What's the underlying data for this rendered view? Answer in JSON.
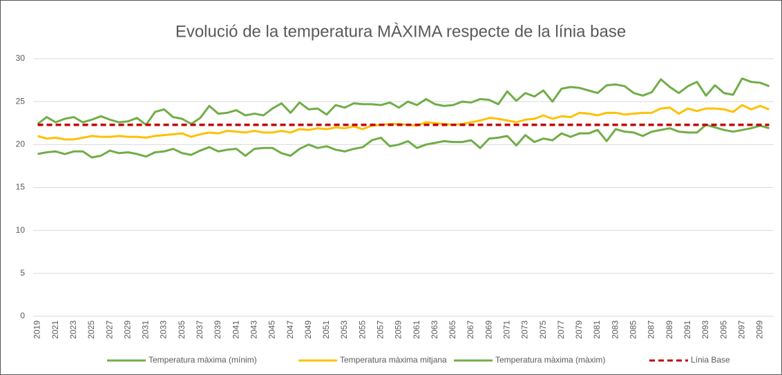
{
  "chart_data": {
    "type": "line",
    "title": "Evolució de la temperatura MÀXIMA respecte de la línia base",
    "categories": [
      "2019",
      null,
      "2021",
      null,
      "2023",
      null,
      "2025",
      null,
      "2027",
      null,
      "2029",
      null,
      "2031",
      null,
      "2033",
      null,
      "2035",
      null,
      "2037",
      null,
      "2039",
      null,
      "2041",
      null,
      "2043",
      null,
      "2045",
      null,
      "2047",
      null,
      "2049",
      null,
      "2051",
      null,
      "2053",
      null,
      "2055",
      null,
      "2057",
      null,
      "2059",
      null,
      "2061",
      null,
      "2063",
      null,
      "2065",
      null,
      "2067",
      null,
      "2069",
      null,
      "2071",
      null,
      "2073",
      null,
      "2075",
      null,
      "2077",
      null,
      "2079",
      null,
      "2081",
      null,
      "2083",
      null,
      "2085",
      null,
      "2087",
      null,
      "2089",
      null,
      "2091",
      null,
      "2093",
      null,
      "2095",
      null,
      "2097",
      null,
      "2099",
      null
    ],
    "ylim": [
      0,
      30
    ],
    "yticks": [
      0,
      5,
      10,
      15,
      20,
      25,
      30
    ],
    "grid": true,
    "legend": "bottom",
    "series": [
      {
        "name": "Temperatura màxima (mínim)",
        "color": "#70ad47",
        "values": [
          18.9,
          19.1,
          19.2,
          18.9,
          19.2,
          19.2,
          18.5,
          18.7,
          19.3,
          19.0,
          19.1,
          18.9,
          18.6,
          19.1,
          19.2,
          19.5,
          19.0,
          18.8,
          19.3,
          19.7,
          19.2,
          19.4,
          19.5,
          18.7,
          19.5,
          19.6,
          19.6,
          19.0,
          18.7,
          19.5,
          20.0,
          19.6,
          19.8,
          19.4,
          19.2,
          19.5,
          19.7,
          20.5,
          20.8,
          19.8,
          20.0,
          20.4,
          19.6,
          20.0,
          20.2,
          20.4,
          20.3,
          20.3,
          20.5,
          19.6,
          20.7,
          20.8,
          21.0,
          19.9,
          21.1,
          20.3,
          20.7,
          20.5,
          21.3,
          20.9,
          21.3,
          21.3,
          21.7,
          20.4,
          21.8,
          21.5,
          21.4,
          21.0,
          21.5,
          21.7,
          21.9,
          21.5,
          21.4,
          21.4,
          22.3,
          22.0,
          21.7,
          21.5,
          21.7,
          21.9,
          22.2,
          21.9
        ]
      },
      {
        "name": "Temperatura màxima mitjana",
        "color": "#ffc000",
        "values": [
          21.0,
          20.7,
          20.8,
          20.6,
          20.6,
          20.8,
          21.0,
          20.9,
          20.9,
          21.0,
          20.9,
          20.9,
          20.8,
          21.0,
          21.1,
          21.2,
          21.3,
          20.9,
          21.2,
          21.4,
          21.3,
          21.6,
          21.5,
          21.4,
          21.6,
          21.4,
          21.4,
          21.6,
          21.4,
          21.8,
          21.7,
          21.9,
          21.8,
          22.0,
          21.9,
          22.1,
          21.8,
          22.2,
          22.3,
          22.4,
          22.4,
          22.3,
          22.2,
          22.6,
          22.5,
          22.4,
          22.3,
          22.4,
          22.6,
          22.8,
          23.1,
          23.0,
          22.8,
          22.6,
          22.9,
          23.0,
          23.4,
          23.0,
          23.3,
          23.2,
          23.7,
          23.6,
          23.4,
          23.7,
          23.7,
          23.5,
          23.6,
          23.7,
          23.7,
          24.2,
          24.3,
          23.6,
          24.2,
          23.9,
          24.2,
          24.2,
          24.1,
          23.8,
          24.6,
          24.1,
          24.5,
          24.1
        ]
      },
      {
        "name": "Temperatura màxima (màxim)",
        "color": "#70ad47",
        "values": [
          22.4,
          23.2,
          22.6,
          23.0,
          23.2,
          22.6,
          22.9,
          23.3,
          22.9,
          22.6,
          22.7,
          23.1,
          22.3,
          23.8,
          24.1,
          23.2,
          23.0,
          22.4,
          23.1,
          24.5,
          23.6,
          23.7,
          24.0,
          23.4,
          23.6,
          23.4,
          24.2,
          24.8,
          23.7,
          24.9,
          24.1,
          24.2,
          23.5,
          24.6,
          24.3,
          24.8,
          24.7,
          24.7,
          24.6,
          24.9,
          24.3,
          25.0,
          24.6,
          25.3,
          24.7,
          24.5,
          24.6,
          25.0,
          24.9,
          25.3,
          25.2,
          24.7,
          26.2,
          25.1,
          26.0,
          25.6,
          26.3,
          25.0,
          26.5,
          26.7,
          26.6,
          26.3,
          26.0,
          26.9,
          27.0,
          26.8,
          26.0,
          25.7,
          26.1,
          27.6,
          26.7,
          26.0,
          26.8,
          27.3,
          25.7,
          26.9,
          26.0,
          25.8,
          27.7,
          27.3,
          27.2,
          26.8
        ]
      },
      {
        "name": "Línia Base",
        "color": "#c00000",
        "dashed": true,
        "values": [
          22.3,
          22.3,
          22.3,
          22.3,
          22.3,
          22.3,
          22.3,
          22.3,
          22.3,
          22.3,
          22.3,
          22.3,
          22.3,
          22.3,
          22.3,
          22.3,
          22.3,
          22.3,
          22.3,
          22.3,
          22.3,
          22.3,
          22.3,
          22.3,
          22.3,
          22.3,
          22.3,
          22.3,
          22.3,
          22.3,
          22.3,
          22.3,
          22.3,
          22.3,
          22.3,
          22.3,
          22.3,
          22.3,
          22.3,
          22.3,
          22.3,
          22.3,
          22.3,
          22.3,
          22.3,
          22.3,
          22.3,
          22.3,
          22.3,
          22.3,
          22.3,
          22.3,
          22.3,
          22.3,
          22.3,
          22.3,
          22.3,
          22.3,
          22.3,
          22.3,
          22.3,
          22.3,
          22.3,
          22.3,
          22.3,
          22.3,
          22.3,
          22.3,
          22.3,
          22.3,
          22.3,
          22.3,
          22.3,
          22.3,
          22.3,
          22.3,
          22.3,
          22.3,
          22.3,
          22.3,
          22.3,
          22.3
        ]
      }
    ]
  }
}
